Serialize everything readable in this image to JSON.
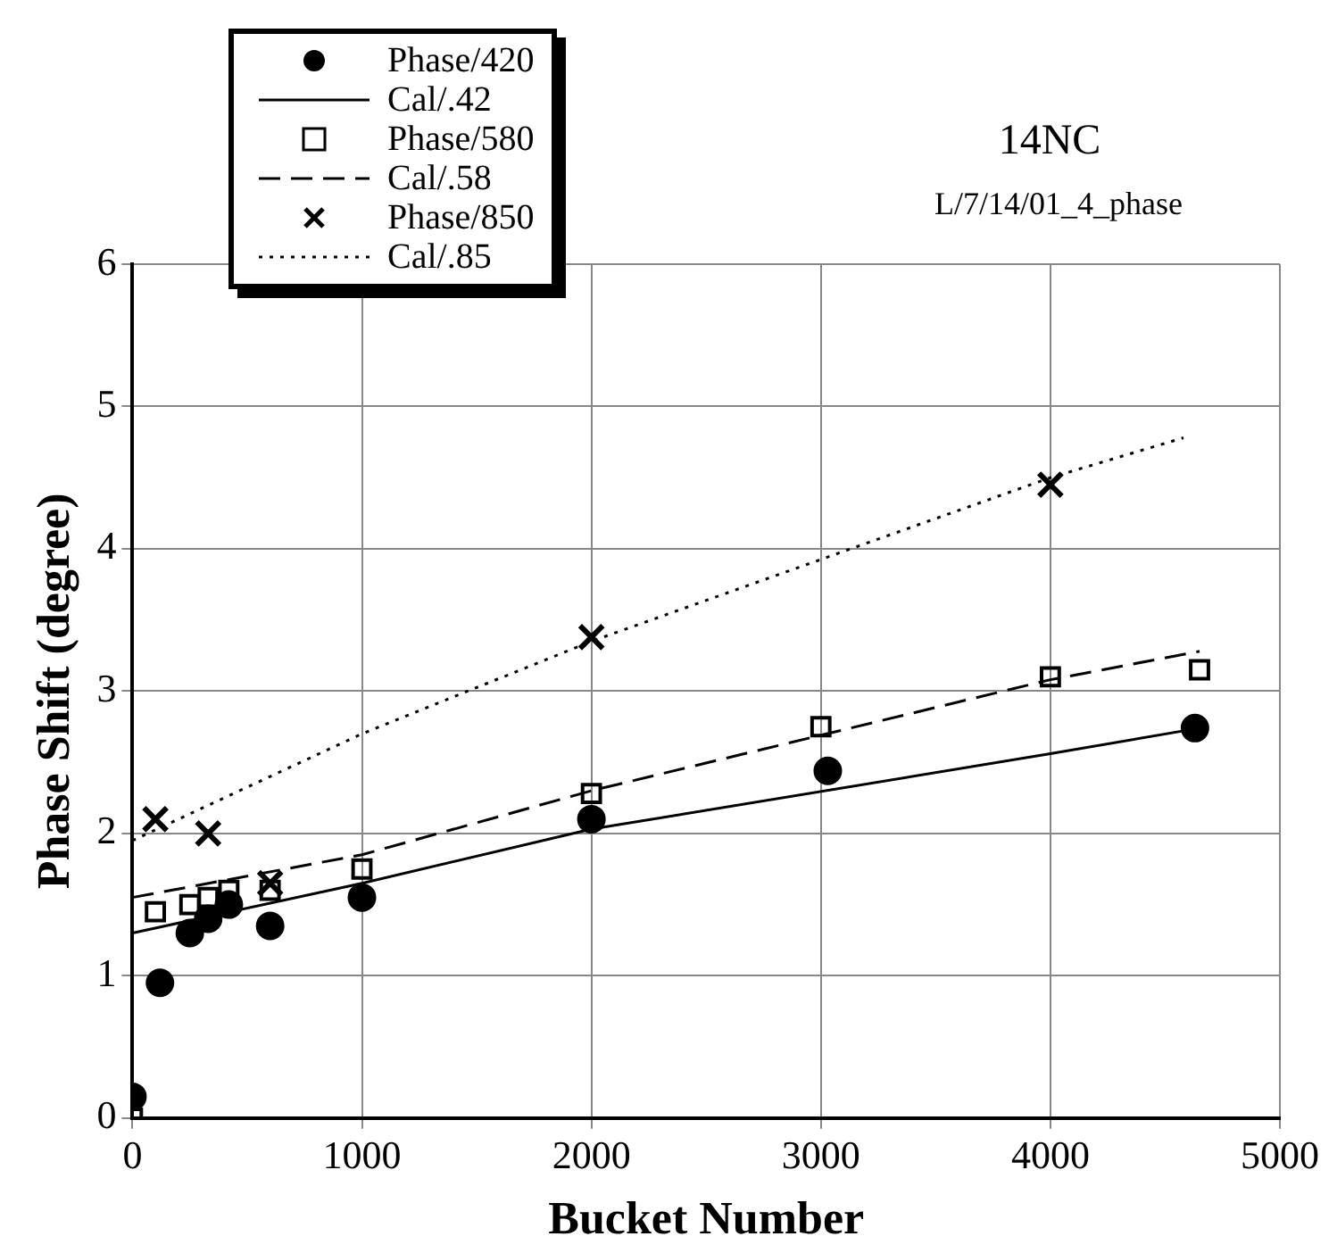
{
  "chart_data": {
    "type": "scatter",
    "title": "14NC",
    "subtitle": "L/7/14/01_4_phase",
    "xlabel": "Bucket Number",
    "ylabel": "Phase Shift (degree)",
    "xlim": [
      0,
      5000
    ],
    "xticks": [
      0,
      1000,
      2000,
      3000,
      4000,
      5000
    ],
    "ylim": [
      0,
      6
    ],
    "yticks": [
      0,
      1,
      2,
      3,
      4,
      5,
      6
    ],
    "grid": true,
    "legend": "top left",
    "series": [
      {
        "name": "Phase/420",
        "marker": "circle",
        "color": "#000000",
        "x": [
          0,
          120,
          250,
          330,
          420,
          600,
          1000,
          2000,
          3030,
          4630
        ],
        "values": [
          0.15,
          0.95,
          1.3,
          1.4,
          1.5,
          1.35,
          1.55,
          2.1,
          2.44,
          2.74
        ]
      },
      {
        "name": "Cal/.42",
        "type": "line",
        "marker": "none",
        "line_style": "solid",
        "color": "#000000",
        "x": [
          0,
          1000,
          2000,
          4000,
          4650
        ],
        "values": [
          1.3,
          1.65,
          2.03,
          2.56,
          2.74
        ]
      },
      {
        "name": "Phase/580",
        "marker": "square",
        "color": "#000000",
        "x": [
          0,
          100,
          250,
          330,
          420,
          600,
          1000,
          2000,
          3000,
          4000,
          4650
        ],
        "values": [
          0.0,
          1.45,
          1.5,
          1.55,
          1.6,
          1.6,
          1.75,
          2.28,
          2.75,
          3.1,
          3.15
        ]
      },
      {
        "name": "Cal/.58",
        "type": "line",
        "marker": "none",
        "line_style": "dashed",
        "color": "#000000",
        "x": [
          0,
          1000,
          2000,
          4000,
          4650
        ],
        "values": [
          1.55,
          1.85,
          2.3,
          3.08,
          3.28
        ]
      },
      {
        "name": "Phase/850",
        "marker": "cross",
        "color": "#000000",
        "x": [
          100,
          330,
          600,
          2000,
          4000
        ],
        "values": [
          2.1,
          2.0,
          1.65,
          3.38,
          4.45
        ]
      },
      {
        "name": "Cal/.85",
        "type": "line",
        "marker": "none",
        "line_style": "dotted",
        "color": "#000000",
        "x": [
          0,
          1000,
          2000,
          4000,
          4580
        ],
        "values": [
          1.95,
          2.7,
          3.35,
          4.5,
          4.78
        ]
      }
    ]
  }
}
